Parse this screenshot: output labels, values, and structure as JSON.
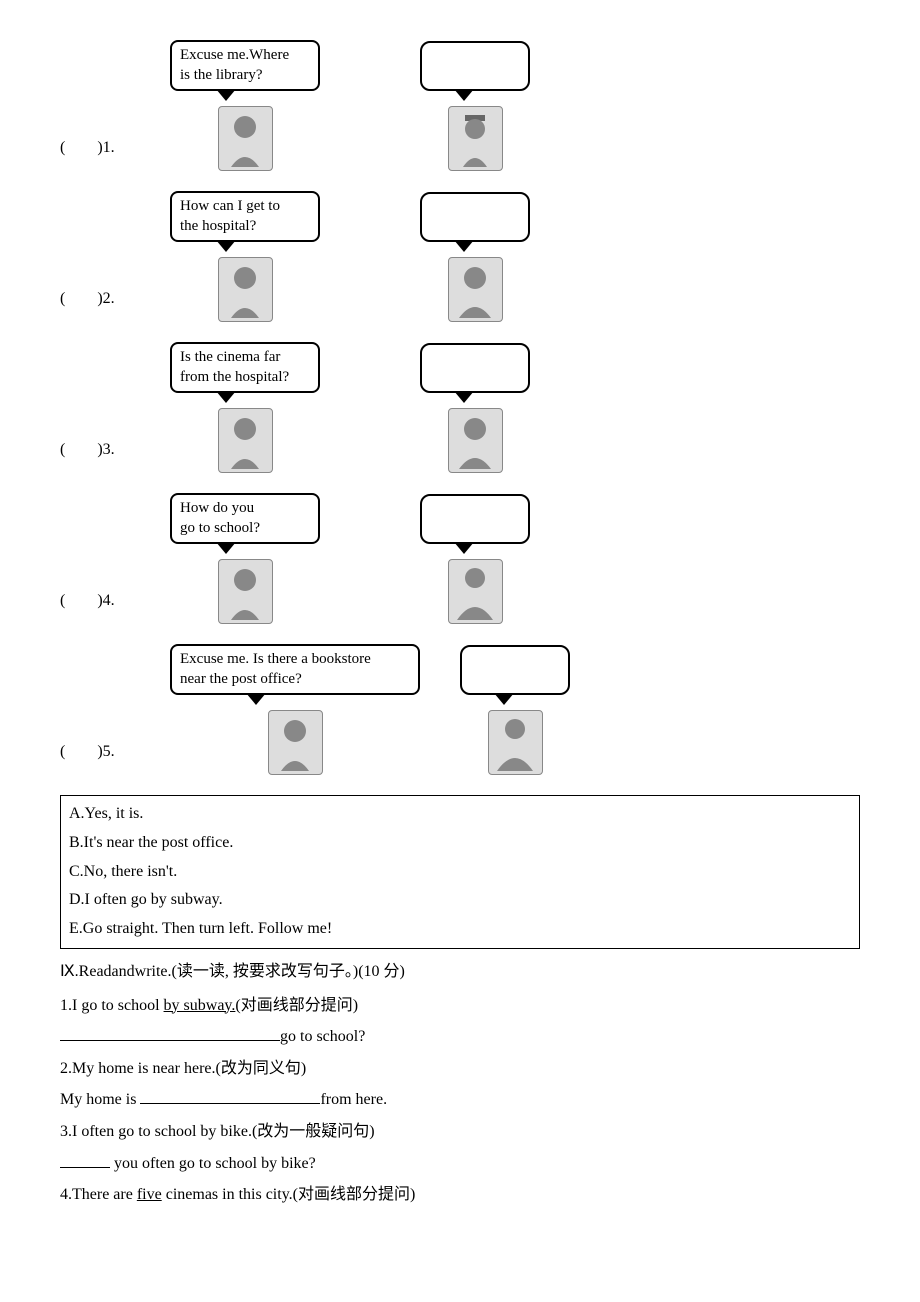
{
  "questions": [
    {
      "num": "(　　)1.",
      "bubble": "Excuse me.Where\nis the library?"
    },
    {
      "num": "(　　)2.",
      "bubble": "How can I get to\nthe hospital?"
    },
    {
      "num": "(　　)3.",
      "bubble": "Is the cinema far\nfrom the hospital?"
    },
    {
      "num": "(　　)4.",
      "bubble": "How do you\ngo to school?"
    },
    {
      "num": "(　　)5.",
      "bubble": "Excuse me. Is there a bookstore\nnear the post office?"
    }
  ],
  "answers": {
    "A": "A.Yes, it is.",
    "B": "B.It's near the post office.",
    "C": "C.No, there isn't.",
    "D": "D.I often go by subway.",
    "E": "E.Go straight. Then turn left. Follow me!"
  },
  "section_title": "Ⅸ.Readandwrite.(读一读, 按要求改写句子。)(10 分)",
  "exercises": {
    "e1_q": "1.I go to school ",
    "e1_underline": "by subway.",
    "e1_tail": "(对画线部分提问)",
    "e1_answer_tail": "go to school?",
    "e2_q": "2.My home is near here.(改为同义句)",
    "e2_a_head": "My home is ",
    "e2_a_tail": "from here.",
    "e3_q": "3.I often go to school by bike.(改为一般疑问句)",
    "e3_a_tail": " you often go to school by bike?",
    "e4_q_head": "4.There are ",
    "e4_underline": "five",
    "e4_q_tail": " cinemas in this city.(对画线部分提问)"
  }
}
